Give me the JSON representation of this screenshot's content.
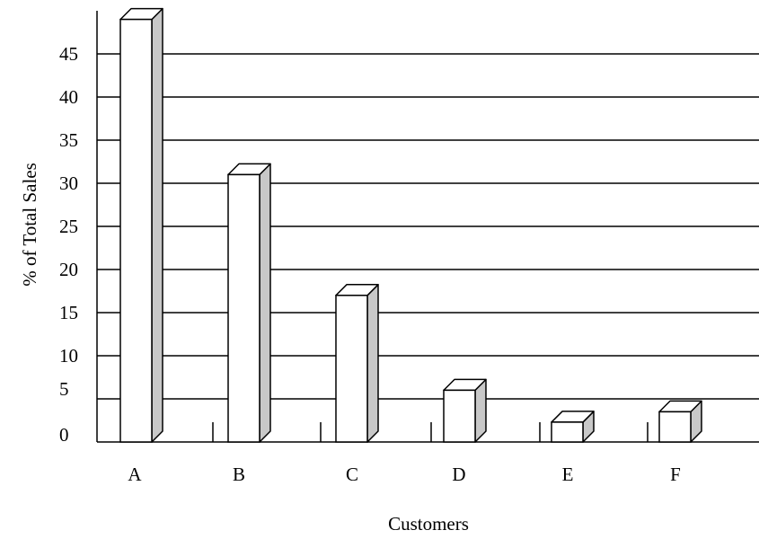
{
  "chart_data": {
    "type": "bar",
    "style": "3d",
    "categories": [
      "A",
      "B",
      "C",
      "D",
      "E",
      "F"
    ],
    "values": [
      49,
      31,
      17,
      6,
      2.3,
      3.5
    ],
    "ylabel": "% of Total Sales",
    "xlabel": "Customers",
    "yticks": [
      "0",
      "5",
      "10",
      "15",
      "20",
      "25",
      "30",
      "35",
      "40",
      "45"
    ],
    "ylim": [
      0,
      50
    ],
    "grid": true,
    "colors": {
      "bar_front": "#ffffff",
      "bar_side": "#c8c8c8",
      "stroke": "#000000"
    }
  }
}
